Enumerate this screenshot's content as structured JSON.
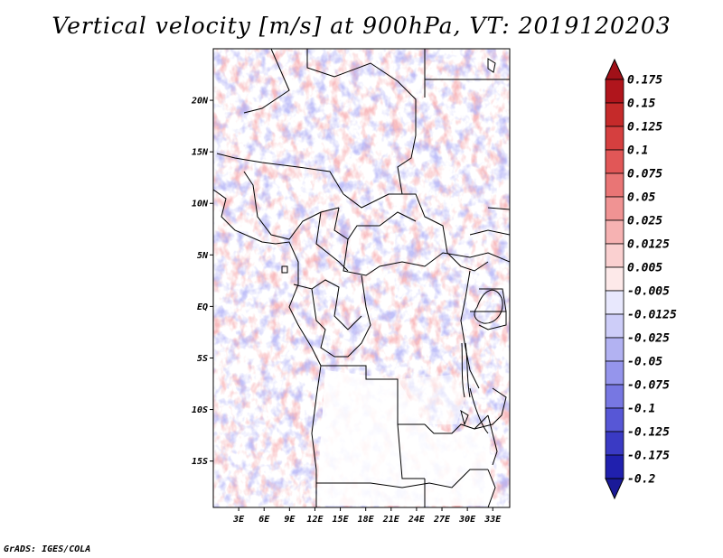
{
  "title": "Vertical velocity [m/s] at 900hPa, VT: 2019120203",
  "credit": "GrADS: IGES/COLA",
  "map": {
    "lat_labels": [
      {
        "lat": 20,
        "label": "20N"
      },
      {
        "lat": 15,
        "label": "15N"
      },
      {
        "lat": 10,
        "label": "10N"
      },
      {
        "lat": 5,
        "label": "5N"
      },
      {
        "lat": 0,
        "label": "EQ"
      },
      {
        "lat": -5,
        "label": "5S"
      },
      {
        "lat": -10,
        "label": "10S"
      },
      {
        "lat": -15,
        "label": "15S"
      }
    ],
    "lon_labels": [
      {
        "lon": 3,
        "label": "3E"
      },
      {
        "lon": 6,
        "label": "6E"
      },
      {
        "lon": 9,
        "label": "9E"
      },
      {
        "lon": 12,
        "label": "12E"
      },
      {
        "lon": 15,
        "label": "15E"
      },
      {
        "lon": 18,
        "label": "18E"
      },
      {
        "lon": 21,
        "label": "21E"
      },
      {
        "lon": 24,
        "label": "24E"
      },
      {
        "lon": 27,
        "label": "27E"
      },
      {
        "lon": 30,
        "label": "30E"
      },
      {
        "lon": 33,
        "label": "33E"
      }
    ],
    "lon_range": [
      0,
      35
    ],
    "lat_range": [
      -19.5,
      25
    ]
  },
  "colorbar": {
    "levels": [
      {
        "label": "0.175",
        "color": "#b0151c"
      },
      {
        "label": "0.15",
        "color": "#c52a2a"
      },
      {
        "label": "0.125",
        "color": "#d53f3f"
      },
      {
        "label": "0.1",
        "color": "#e15757"
      },
      {
        "label": "0.075",
        "color": "#e97575"
      },
      {
        "label": "0.05",
        "color": "#f09393"
      },
      {
        "label": "0.025",
        "color": "#f6b2b2"
      },
      {
        "label": "0.0125",
        "color": "#fad0d0"
      },
      {
        "label": "0.005",
        "color": "#fde9e9"
      },
      {
        "label": "-0.005",
        "color": "#ffffff"
      },
      {
        "label": "-0.0125",
        "color": "#e8e8fd"
      },
      {
        "label": "-0.025",
        "color": "#cdcdf8"
      },
      {
        "label": "-0.05",
        "color": "#b2b2f2"
      },
      {
        "label": "-0.075",
        "color": "#9595ec"
      },
      {
        "label": "-0.1",
        "color": "#7777e2"
      },
      {
        "label": "-0.125",
        "color": "#5757d6"
      },
      {
        "label": "-0.175",
        "color": "#3a3ac4"
      },
      {
        "label": "-0.2",
        "color": "#2020ae"
      }
    ],
    "top_color": "#a01018",
    "bottom_color": "#1a1a98"
  }
}
